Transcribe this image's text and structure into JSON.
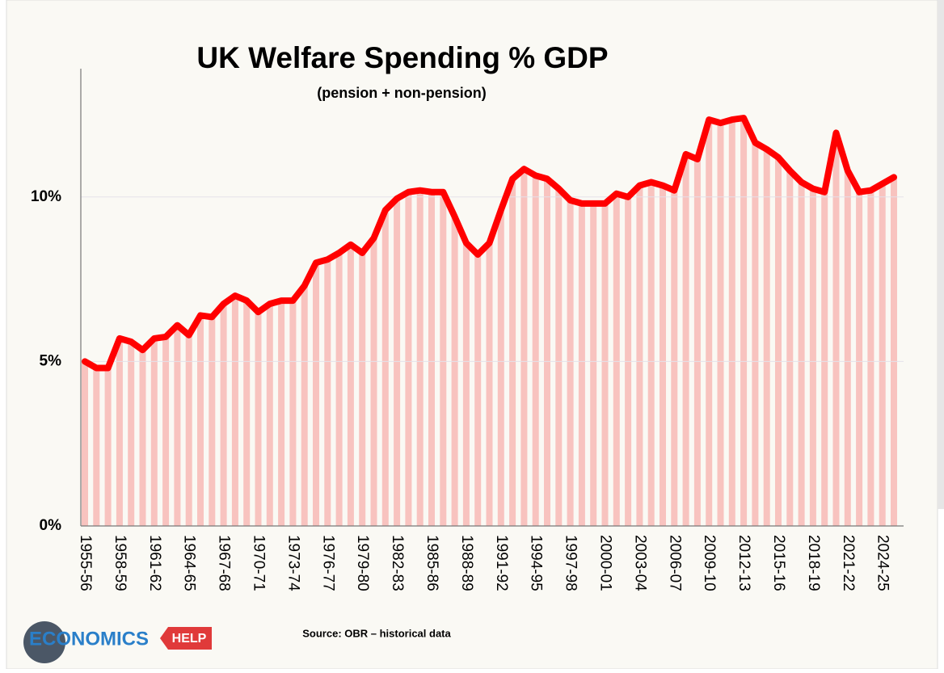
{
  "chart_data": {
    "type": "line",
    "title": "UK Welfare Spending % GDP",
    "subtitle": "(pension + non-pension)",
    "source": "Source: OBR – historical data",
    "brand": "ECONOMICS",
    "brand_tag": "HELP",
    "color": "#ff0000",
    "fill_color": "#f8c3bf",
    "grid": true,
    "ylim": [
      0,
      13.9
    ],
    "yticks": [
      {
        "value": 0,
        "label": "0%"
      },
      {
        "value": 5,
        "label": "5%"
      },
      {
        "value": 10,
        "label": "10%"
      }
    ],
    "categories": [
      "1955-56",
      null,
      null,
      "1958-59",
      null,
      null,
      "1961-62",
      null,
      null,
      "1964-65",
      null,
      null,
      "1967-68",
      null,
      null,
      "1970-71",
      null,
      null,
      "1973-74",
      null,
      null,
      "1976-77",
      null,
      null,
      "1979-80",
      null,
      null,
      "1982-83",
      null,
      null,
      "1985-86",
      null,
      null,
      "1988-89",
      null,
      null,
      "1991-92",
      null,
      null,
      "1994-95",
      null,
      null,
      "1997-98",
      null,
      null,
      "2000-01",
      null,
      null,
      "2003-04",
      null,
      null,
      "2006-07",
      null,
      null,
      "2009-10",
      null,
      null,
      "2012-13",
      null,
      null,
      "2015-16",
      null,
      null,
      "2018-19",
      null,
      null,
      "2021-22",
      null,
      null,
      "2024-25",
      null
    ],
    "values": [
      5.0,
      4.8,
      4.8,
      5.7,
      5.6,
      5.35,
      5.7,
      5.75,
      6.1,
      5.8,
      6.4,
      6.35,
      6.75,
      7.0,
      6.85,
      6.5,
      6.75,
      6.85,
      6.85,
      7.3,
      8.0,
      8.1,
      8.3,
      8.55,
      8.3,
      8.75,
      9.6,
      9.95,
      10.15,
      10.2,
      10.15,
      10.15,
      9.4,
      8.6,
      8.25,
      8.6,
      9.6,
      10.55,
      10.85,
      10.65,
      10.55,
      10.25,
      9.9,
      9.8,
      9.8,
      9.8,
      10.1,
      10.0,
      10.35,
      10.45,
      10.35,
      10.2,
      11.3,
      11.15,
      12.35,
      12.25,
      12.35,
      12.4,
      11.65,
      11.45,
      11.2,
      10.8,
      10.45,
      10.25,
      10.15,
      11.95,
      10.8,
      10.15,
      10.2,
      10.4,
      10.6
    ]
  }
}
